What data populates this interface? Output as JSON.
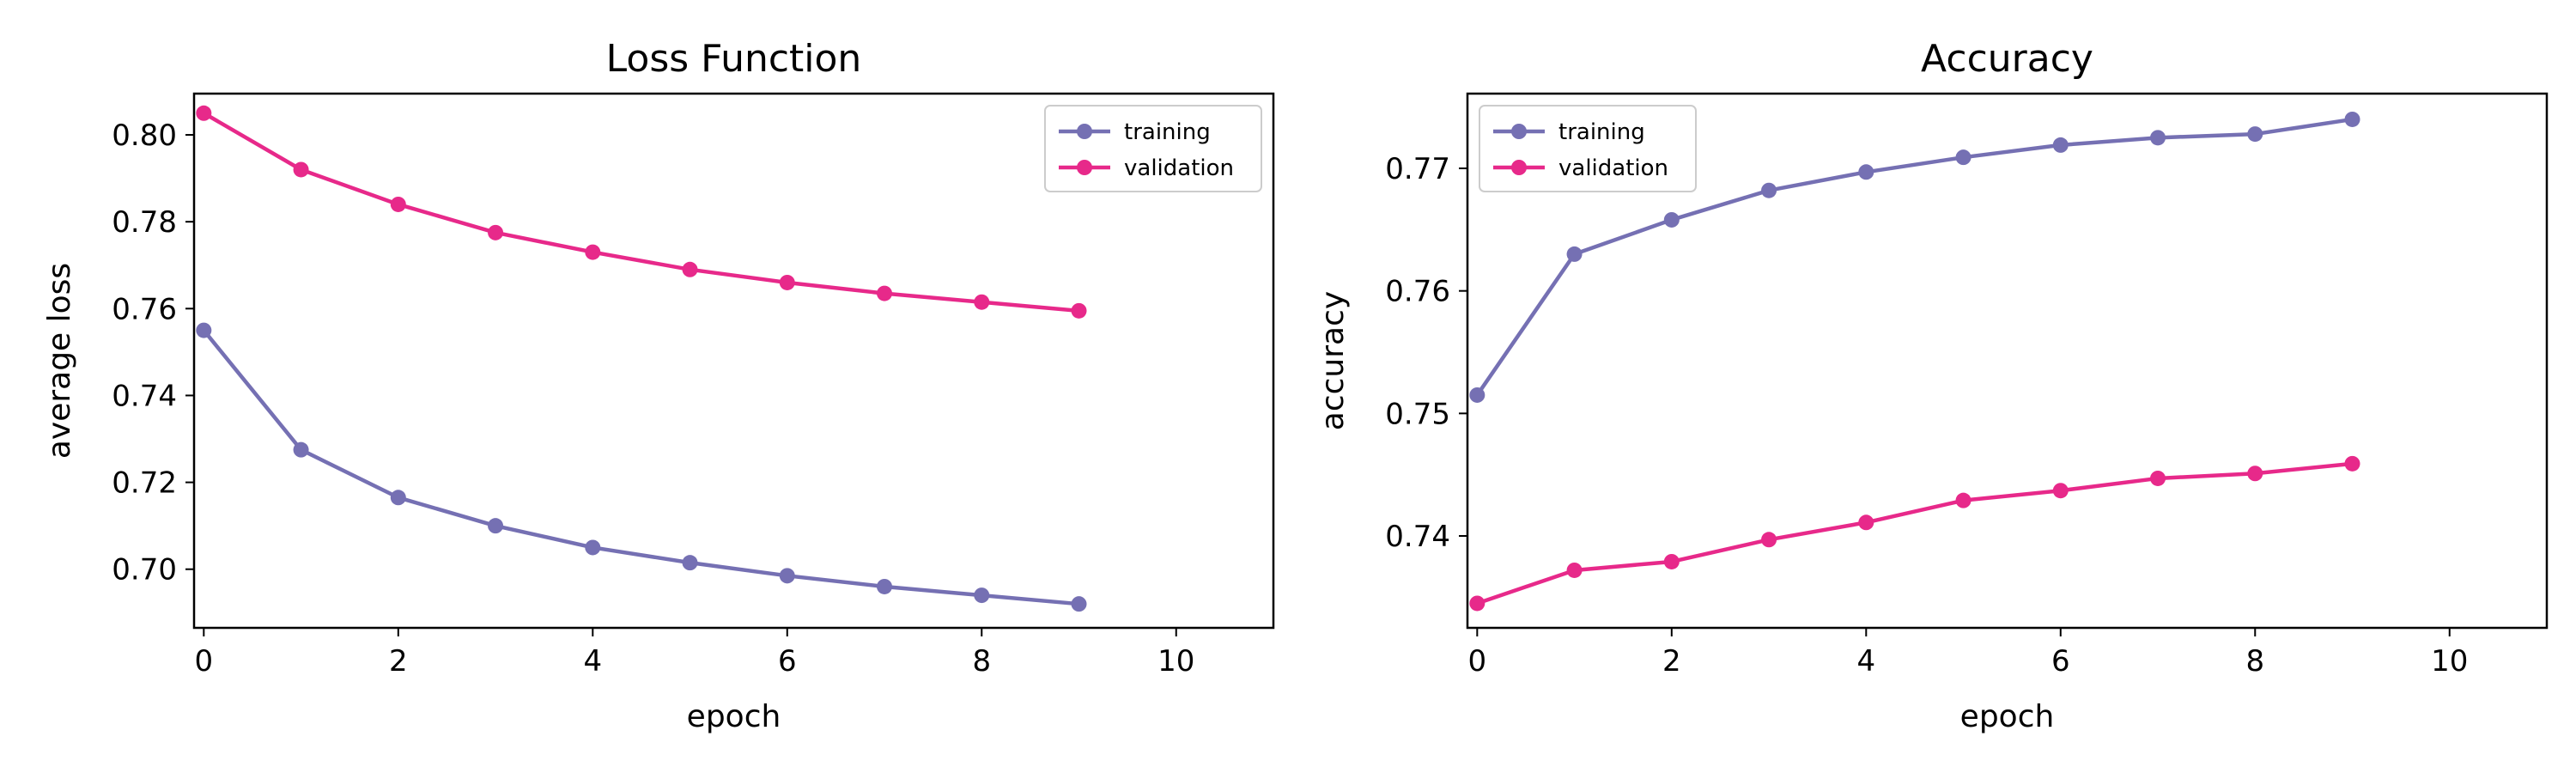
{
  "chart_data": [
    {
      "type": "line",
      "title": "Loss Function",
      "xlabel": "epoch",
      "ylabel": "average loss",
      "xlim": [
        -0.1,
        11
      ],
      "ylim": [
        0.6865,
        0.8095
      ],
      "xticks": [
        0,
        2,
        4,
        6,
        8,
        10
      ],
      "xtick_labels": [
        "0",
        "2",
        "4",
        "6",
        "8",
        "10"
      ],
      "yticks": [
        0.7,
        0.72,
        0.74,
        0.76,
        0.78,
        0.8
      ],
      "ytick_labels": [
        "0.70",
        "0.72",
        "0.74",
        "0.76",
        "0.78",
        "0.80"
      ],
      "grid": false,
      "legend_position": "top-right",
      "x": [
        0,
        1,
        2,
        3,
        4,
        5,
        6,
        7,
        8,
        9
      ],
      "series": [
        {
          "name": "training",
          "color": "#7570b3",
          "values": [
            0.755,
            0.7275,
            0.7165,
            0.71,
            0.705,
            0.7015,
            0.6985,
            0.696,
            0.694,
            0.692
          ]
        },
        {
          "name": "validation",
          "color": "#e7298a",
          "values": [
            0.805,
            0.792,
            0.784,
            0.7775,
            0.773,
            0.769,
            0.766,
            0.7635,
            0.7615,
            0.7595
          ]
        }
      ]
    },
    {
      "type": "line",
      "title": "Accuracy",
      "xlabel": "epoch",
      "ylabel": "accuracy",
      "xlim": [
        -0.1,
        11
      ],
      "ylim": [
        0.7325,
        0.7761
      ],
      "xticks": [
        0,
        2,
        4,
        6,
        8,
        10
      ],
      "xtick_labels": [
        "0",
        "2",
        "4",
        "6",
        "8",
        "10"
      ],
      "yticks": [
        0.74,
        0.75,
        0.76,
        0.77
      ],
      "ytick_labels": [
        "0.74",
        "0.75",
        "0.76",
        "0.77"
      ],
      "grid": false,
      "legend_position": "top-left",
      "x": [
        0,
        1,
        2,
        3,
        4,
        5,
        6,
        7,
        8,
        9
      ],
      "series": [
        {
          "name": "training",
          "color": "#7570b3",
          "values": [
            0.7515,
            0.763,
            0.7658,
            0.7682,
            0.7697,
            0.7709,
            0.7719,
            0.7725,
            0.7728,
            0.774
          ]
        },
        {
          "name": "validation",
          "color": "#e7298a",
          "values": [
            0.7345,
            0.7372,
            0.7379,
            0.7397,
            0.7411,
            0.7429,
            0.7437,
            0.7447,
            0.7451,
            0.7459
          ]
        }
      ]
    }
  ]
}
